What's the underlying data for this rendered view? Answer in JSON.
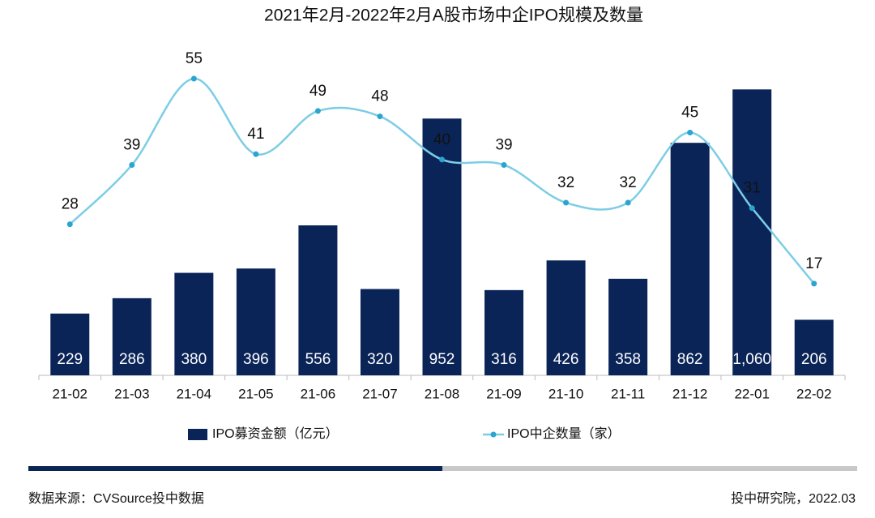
{
  "chart_data": {
    "type": "combo",
    "title": "2021年2月-2022年2月A股市场中企IPO规模及数量",
    "categories": [
      "21-02",
      "21-03",
      "21-04",
      "21-05",
      "21-06",
      "21-07",
      "21-08",
      "21-09",
      "21-10",
      "21-11",
      "21-12",
      "22-01",
      "22-02"
    ],
    "series": [
      {
        "name": "IPO募资金额（亿元）",
        "type": "bar",
        "color": "#0a2458",
        "values": [
          229,
          286,
          380,
          396,
          556,
          320,
          952,
          316,
          426,
          358,
          862,
          1060,
          206
        ],
        "value_labels": [
          "229",
          "286",
          "380",
          "396",
          "556",
          "320",
          "952",
          "316",
          "426",
          "358",
          "862",
          "1,060",
          "206"
        ]
      },
      {
        "name": "IPO中企数量（家）",
        "type": "line",
        "axis": "y2",
        "color": "#7dcde6",
        "values": [
          28,
          39,
          55,
          41,
          49,
          48,
          40,
          39,
          32,
          32,
          45,
          31,
          17
        ]
      }
    ],
    "ylim": [
      0,
      1100
    ],
    "y2lim": [
      0,
      55
    ],
    "source": "数据来源：CVSource投中数据",
    "credit": "投中研究院，2022.03"
  }
}
